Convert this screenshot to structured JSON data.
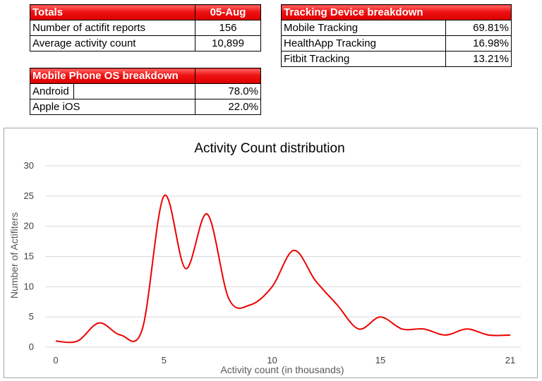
{
  "totals": {
    "header": "Totals",
    "date": "05-Aug",
    "rows": [
      {
        "label": "Number of actifit reports",
        "value": "156"
      },
      {
        "label": "Average activity count",
        "value": "10,899"
      }
    ]
  },
  "device_breakdown": {
    "header": "Tracking Device breakdown",
    "rows": [
      {
        "label": "Mobile Tracking",
        "value": "69.81%"
      },
      {
        "label": "HealthApp Tracking",
        "value": "16.98%"
      },
      {
        "label": "Fitbit Tracking",
        "value": "13.21%"
      }
    ]
  },
  "os_breakdown": {
    "header": "Mobile Phone OS breakdown",
    "rows": [
      {
        "label": "Android",
        "value": "78.0%"
      },
      {
        "label": "Apple iOS",
        "value": "22.0%"
      }
    ]
  },
  "colors": {
    "header_red": "#dd0000",
    "line": "#ee0000",
    "grid": "#d9d9d9"
  },
  "chart_data": {
    "type": "line",
    "title": "Activity Count distribution",
    "xlabel": "Activity count (in thousands)",
    "ylabel": "Number of Actifiters",
    "xlim": [
      0,
      21
    ],
    "ylim": [
      0,
      30
    ],
    "x_ticks": [
      "0",
      "5",
      "10",
      "15",
      "21"
    ],
    "y_ticks": [
      "0",
      "5",
      "10",
      "15",
      "20",
      "25",
      "30"
    ],
    "grid": "horizontal",
    "smooth": true,
    "series": [
      {
        "x": [
          0,
          1,
          2,
          3,
          4,
          5,
          6,
          7,
          8,
          9,
          10,
          11,
          12,
          13,
          14,
          15,
          16,
          17,
          18,
          19,
          20,
          21
        ],
        "values": [
          1,
          1,
          4,
          2,
          3,
          25,
          13,
          22,
          8,
          7,
          10,
          16,
          11,
          7,
          3,
          5,
          3,
          3,
          2,
          3,
          2,
          2
        ]
      }
    ]
  }
}
